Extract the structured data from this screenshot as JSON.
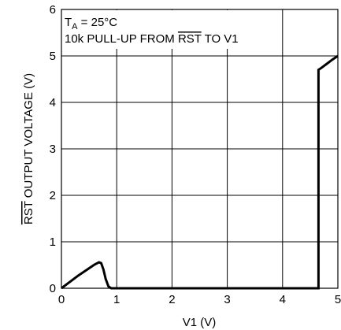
{
  "chart_data": {
    "type": "line",
    "xlabel": "V1 (V)",
    "ylabel_overlined": "RST",
    "ylabel_rest": " OUTPUT VOLTAGE (V)",
    "annotation": {
      "temp_main": "T",
      "temp_sub": "A",
      "temp_rest": " = 25°C",
      "pullup_pre": "10k PULL-UP FROM ",
      "pullup_overlined": "RST",
      "pullup_post": " TO V1"
    },
    "xlim": [
      0,
      5
    ],
    "ylim": [
      0,
      6
    ],
    "x_ticks": [
      "0",
      "1",
      "2",
      "3",
      "4",
      "5"
    ],
    "y_ticks": [
      "0",
      "1",
      "2",
      "3",
      "4",
      "5",
      "6"
    ],
    "grid": true,
    "series": [
      {
        "x": [
          0,
          0.1,
          0.2,
          0.3,
          0.4,
          0.5,
          0.6,
          0.68,
          0.72,
          0.76,
          0.8,
          0.85,
          0.9,
          1.0,
          2.0,
          3.0,
          4.0,
          4.65,
          4.65,
          4.7,
          4.8,
          4.9,
          5.0
        ],
        "y": [
          0,
          0.09,
          0.18,
          0.27,
          0.35,
          0.43,
          0.51,
          0.56,
          0.54,
          0.4,
          0.2,
          0.04,
          0,
          0,
          0,
          0,
          0,
          0,
          4.7,
          4.74,
          4.83,
          4.92,
          5.0
        ]
      }
    ]
  }
}
